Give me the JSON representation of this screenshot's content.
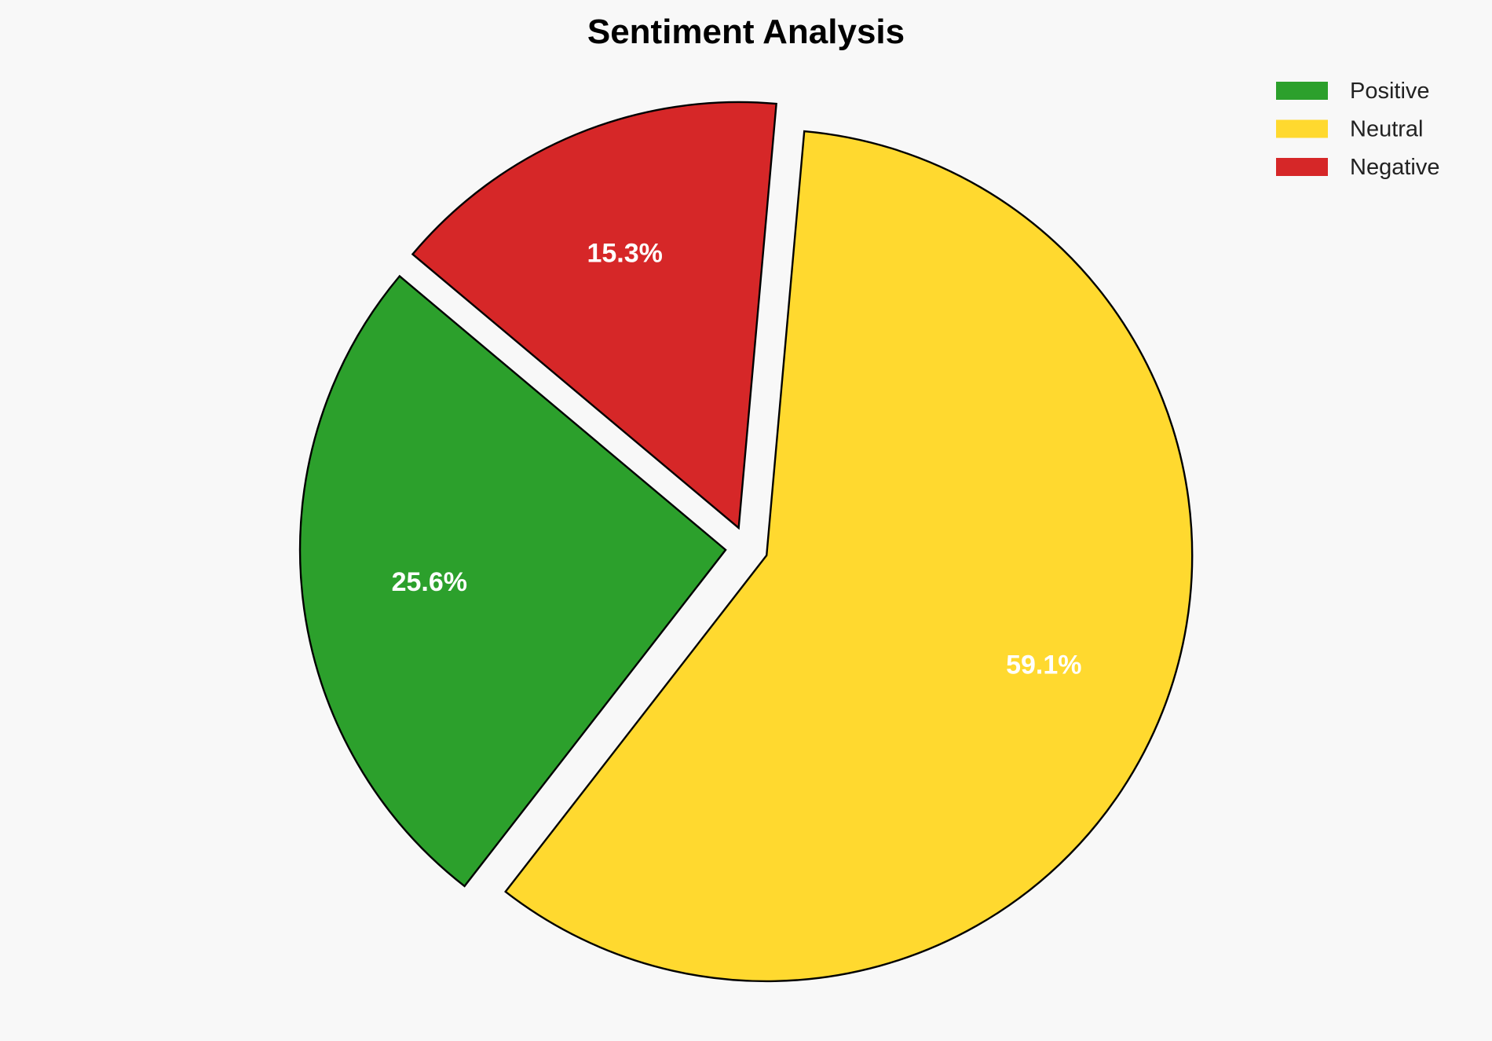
{
  "chart_data": {
    "type": "pie",
    "title": "Sentiment Analysis",
    "categories": [
      "Positive",
      "Neutral",
      "Negative"
    ],
    "values": [
      25.6,
      59.1,
      15.3
    ],
    "labels": [
      "25.6%",
      "59.1%",
      "15.3%"
    ],
    "colors": [
      "#2ca02c",
      "#ffd92f",
      "#d62728"
    ],
    "edge_color": "#000000",
    "start_angle_deg": 140,
    "direction": "counterclockwise",
    "explode": [
      0.05,
      0.05,
      0.05
    ],
    "legend_placement": "top-right"
  }
}
